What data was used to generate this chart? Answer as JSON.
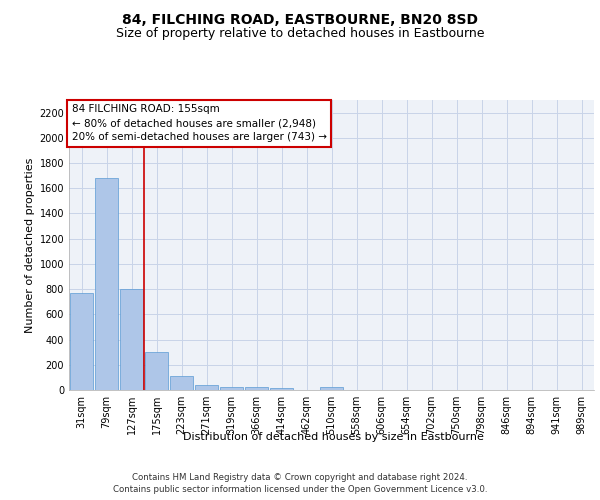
{
  "title": "84, FILCHING ROAD, EASTBOURNE, BN20 8SD",
  "subtitle": "Size of property relative to detached houses in Eastbourne",
  "xlabel": "Distribution of detached houses by size in Eastbourne",
  "ylabel": "Number of detached properties",
  "categories": [
    "31sqm",
    "79sqm",
    "127sqm",
    "175sqm",
    "223sqm",
    "271sqm",
    "319sqm",
    "366sqm",
    "414sqm",
    "462sqm",
    "510sqm",
    "558sqm",
    "606sqm",
    "654sqm",
    "702sqm",
    "750sqm",
    "798sqm",
    "846sqm",
    "894sqm",
    "941sqm",
    "989sqm"
  ],
  "values": [
    770,
    1685,
    800,
    300,
    110,
    38,
    25,
    20,
    15,
    0,
    20,
    0,
    0,
    0,
    0,
    0,
    0,
    0,
    0,
    0,
    0
  ],
  "bar_color": "#aec6e8",
  "bar_edge_color": "#5b9bd5",
  "grid_color": "#c8d4e8",
  "background_color": "#eef2f8",
  "vline_x": 2.5,
  "vline_color": "#cc0000",
  "annotation_text": "84 FILCHING ROAD: 155sqm\n← 80% of detached houses are smaller (2,948)\n20% of semi-detached houses are larger (743) →",
  "annotation_box_color": "#ffffff",
  "annotation_box_edge": "#cc0000",
  "footer_line1": "Contains HM Land Registry data © Crown copyright and database right 2024.",
  "footer_line2": "Contains public sector information licensed under the Open Government Licence v3.0.",
  "ylim": [
    0,
    2300
  ],
  "yticks": [
    0,
    200,
    400,
    600,
    800,
    1000,
    1200,
    1400,
    1600,
    1800,
    2000,
    2200
  ],
  "title_fontsize": 10,
  "subtitle_fontsize": 9,
  "tick_fontsize": 7,
  "ylabel_fontsize": 8,
  "xlabel_fontsize": 8,
  "annotation_fontsize": 7.5,
  "footer_fontsize": 6.2
}
